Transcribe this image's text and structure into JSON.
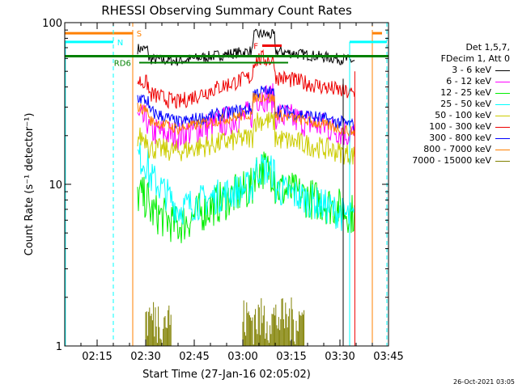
{
  "chart_data": {
    "type": "line",
    "title": "RHESSI Observing Summary Count Rates",
    "xlabel": "Start Time (27-Jan-16 02:05:02)",
    "ylabel": "Count Rate (s⁻¹ detector⁻¹)",
    "yscale": "log",
    "ylim": [
      1,
      100
    ],
    "xlim_minutes_after_0200": [
      5,
      105
    ],
    "x_ticks": [
      "02:15",
      "02:30",
      "02:45",
      "03:00",
      "03:15",
      "03:30",
      "03:45"
    ],
    "y_ticks": [
      "1",
      "10",
      "100"
    ],
    "legend_header": [
      "Det 1,5,7,",
      "FDecim 1, Att 0"
    ],
    "series": [
      {
        "name": "3 - 6 keV",
        "color": "#000000"
      },
      {
        "name": "6 - 12 keV",
        "color": "#ff00ff"
      },
      {
        "name": "12 - 25 keV",
        "color": "#00ee00"
      },
      {
        "name": "25 - 50 keV",
        "color": "#00ffff"
      },
      {
        "name": "50 - 100 keV",
        "color": "#cccc00"
      },
      {
        "name": "100 - 300 keV",
        "color": "#ee0000"
      },
      {
        "name": "300 - 800 keV",
        "color": "#0000ff"
      },
      {
        "name": "800 - 7000 keV",
        "color": "#ff8000"
      },
      {
        "name": "7000 - 15000 keV",
        "color": "#808000"
      }
    ],
    "flags": [
      {
        "label": "S",
        "color": "#ff8000"
      },
      {
        "label": "N",
        "color": "#00ffff"
      },
      {
        "label": "RD6",
        "color": "#008000"
      },
      {
        "label": "F",
        "color": "#ee0000"
      }
    ]
  },
  "footer_date": "26-Oct-2021 03:05"
}
